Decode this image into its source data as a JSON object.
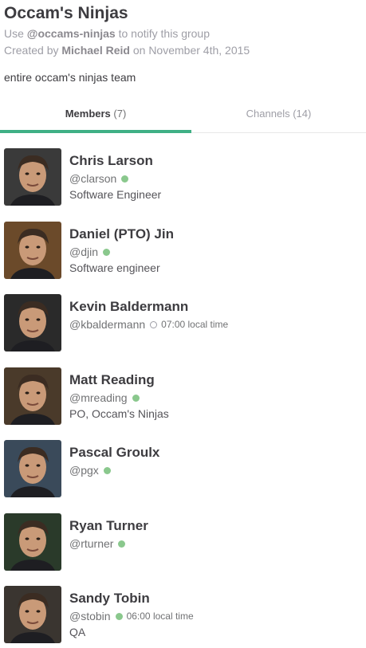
{
  "group": {
    "name": "Occam's Ninjas",
    "use_prefix": "Use",
    "handle": "@occams-ninjas",
    "use_suffix": "to notify this group",
    "created_prefix": "Created by",
    "creator": "Michael Reid",
    "created_suffix": "on November 4th, 2015",
    "description": "entire occam's ninjas team"
  },
  "tabs": [
    {
      "label": "Members",
      "count": "(7)"
    },
    {
      "label": "Channels",
      "count": "(14)"
    }
  ],
  "members": [
    {
      "name": "Chris Larson",
      "handle": "@clarson",
      "presence": "active",
      "local_time": "",
      "title": "Software Engineer",
      "avatar_bg": "#3a3a3a"
    },
    {
      "name": "Daniel (PTO) Jin",
      "handle": "@djin",
      "presence": "active",
      "local_time": "",
      "title": "Software engineer",
      "avatar_bg": "#6b4a2a"
    },
    {
      "name": "Kevin Baldermann",
      "handle": "@kbaldermann",
      "presence": "away",
      "local_time": "07:00 local time",
      "title": "",
      "avatar_bg": "#2a2a2a"
    },
    {
      "name": "Matt Reading",
      "handle": "@mreading",
      "presence": "active",
      "local_time": "",
      "title": "PO, Occam's Ninjas",
      "avatar_bg": "#4a3a2a"
    },
    {
      "name": "Pascal Groulx",
      "handle": "@pgx",
      "presence": "active",
      "local_time": "",
      "title": "",
      "avatar_bg": "#3a4a5a"
    },
    {
      "name": "Ryan Turner",
      "handle": "@rturner",
      "presence": "active",
      "local_time": "",
      "title": "",
      "avatar_bg": "#2a3a2a"
    },
    {
      "name": "Sandy Tobin",
      "handle": "@stobin",
      "presence": "active",
      "local_time": "06:00 local time",
      "title": "QA",
      "avatar_bg": "#3a3530"
    }
  ]
}
